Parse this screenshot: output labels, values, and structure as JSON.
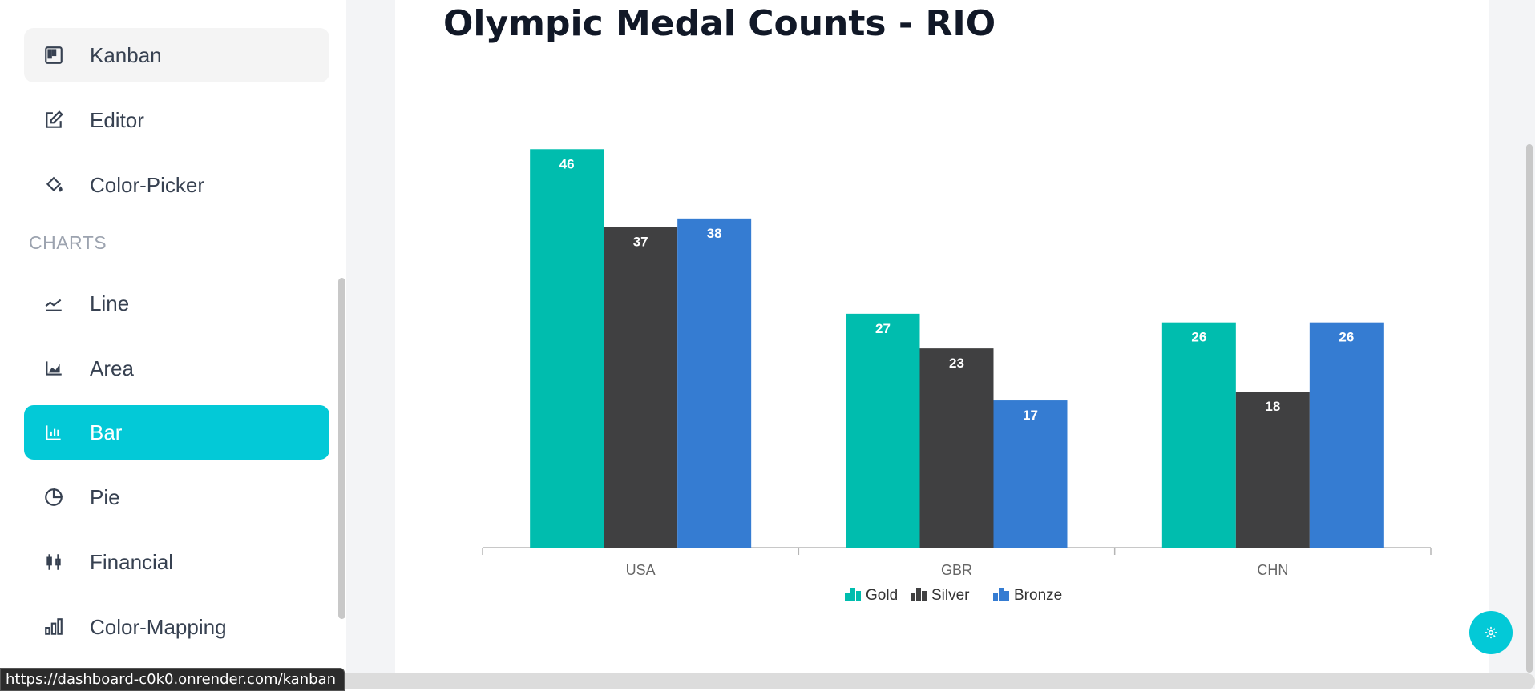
{
  "sidebar": {
    "items": [
      {
        "label": "Kanban",
        "icon": "kanban-icon"
      },
      {
        "label": "Editor",
        "icon": "edit-icon"
      },
      {
        "label": "Color-Picker",
        "icon": "paint-bucket-icon"
      }
    ],
    "charts_section_title": "CHARTS",
    "chart_items": [
      {
        "label": "Line",
        "icon": "line-chart-icon"
      },
      {
        "label": "Area",
        "icon": "area-chart-icon"
      },
      {
        "label": "Bar",
        "icon": "bar-chart-icon",
        "active": true
      },
      {
        "label": "Pie",
        "icon": "pie-chart-icon"
      },
      {
        "label": "Financial",
        "icon": "candlestick-icon"
      },
      {
        "label": "Color-Mapping",
        "icon": "color-mapping-icon"
      }
    ]
  },
  "colors": {
    "accent": "#03c9d7",
    "gold": "#00bdae",
    "silver": "#404041",
    "bronze": "#357cd2"
  },
  "status_bar": {
    "url": "https://dashboard-c0k0.onrender.com/kanban"
  },
  "settings_button": {
    "icon": "gear-icon"
  },
  "chart_data": {
    "type": "bar",
    "title": "Olympic Medal Counts - RIO",
    "categories": [
      "USA",
      "GBR",
      "CHN"
    ],
    "series": [
      {
        "name": "Gold",
        "values": [
          46,
          27,
          26
        ],
        "color": "#00bdae"
      },
      {
        "name": "Silver",
        "values": [
          37,
          23,
          18
        ],
        "color": "#404041"
      },
      {
        "name": "Bronze",
        "values": [
          38,
          17,
          26
        ],
        "color": "#357cd2"
      }
    ],
    "ylim": [
      0,
      50
    ],
    "grid": false,
    "legend_position": "bottom",
    "data_labels": true
  }
}
